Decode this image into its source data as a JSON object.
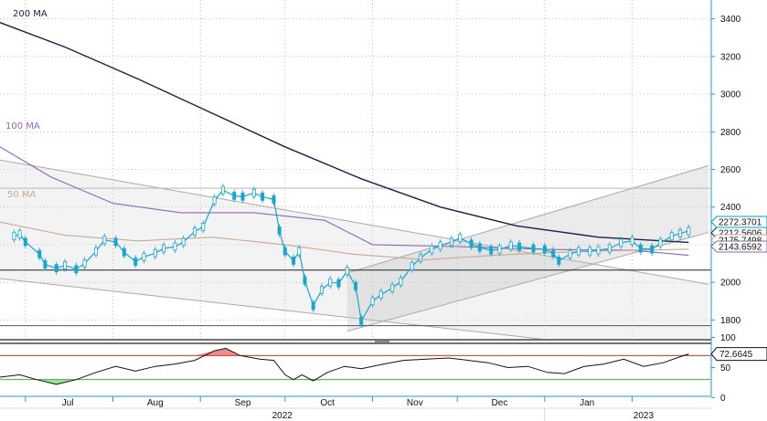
{
  "chart_data": [
    {
      "type": "candlestick",
      "title": "",
      "xlabel": "",
      "ylabel": "",
      "ylim": [
        1700,
        3500
      ],
      "y_ticks": [
        1800,
        2000,
        2200,
        2400,
        2600,
        2800,
        3000,
        3200,
        3400
      ],
      "x_ticks": [
        "Jul",
        "Aug",
        "Sep",
        "Oct",
        "Nov",
        "Dec",
        "Jan"
      ],
      "year_labels": [
        "2022",
        "2023"
      ],
      "grid": true,
      "price_series": [
        [
          "2022-06-27",
          2245
        ],
        [
          "2022-06-29",
          2255
        ],
        [
          "2022-07-01",
          2215
        ],
        [
          "2022-07-06",
          2150
        ],
        [
          "2022-07-08",
          2095
        ],
        [
          "2022-07-12",
          2075
        ],
        [
          "2022-07-15",
          2090
        ],
        [
          "2022-07-19",
          2070
        ],
        [
          "2022-07-22",
          2100
        ],
        [
          "2022-07-26",
          2165
        ],
        [
          "2022-07-29",
          2225
        ],
        [
          "2022-08-02",
          2215
        ],
        [
          "2022-08-05",
          2160
        ],
        [
          "2022-08-09",
          2110
        ],
        [
          "2022-08-12",
          2135
        ],
        [
          "2022-08-16",
          2155
        ],
        [
          "2022-08-19",
          2180
        ],
        [
          "2022-08-23",
          2190
        ],
        [
          "2022-08-26",
          2215
        ],
        [
          "2022-08-30",
          2270
        ],
        [
          "2022-09-02",
          2295
        ],
        [
          "2022-09-06",
          2435
        ],
        [
          "2022-09-09",
          2490
        ],
        [
          "2022-09-13",
          2460
        ],
        [
          "2022-09-16",
          2455
        ],
        [
          "2022-09-20",
          2475
        ],
        [
          "2022-09-23",
          2455
        ],
        [
          "2022-09-27",
          2440
        ],
        [
          "2022-09-29",
          2275
        ],
        [
          "2022-10-01",
          2165
        ],
        [
          "2022-10-04",
          2115
        ],
        [
          "2022-10-06",
          2165
        ],
        [
          "2022-10-08",
          2010
        ],
        [
          "2022-10-11",
          1875
        ],
        [
          "2022-10-14",
          1960
        ],
        [
          "2022-10-17",
          2000
        ],
        [
          "2022-10-20",
          1995
        ],
        [
          "2022-10-23",
          2060
        ],
        [
          "2022-10-26",
          1980
        ],
        [
          "2022-10-28",
          1795
        ],
        [
          "2022-11-01",
          1900
        ],
        [
          "2022-11-04",
          1935
        ],
        [
          "2022-11-08",
          1970
        ],
        [
          "2022-11-11",
          2005
        ],
        [
          "2022-11-15",
          2085
        ],
        [
          "2022-11-18",
          2130
        ],
        [
          "2022-11-22",
          2175
        ],
        [
          "2022-11-25",
          2195
        ],
        [
          "2022-11-29",
          2215
        ],
        [
          "2022-12-02",
          2235
        ],
        [
          "2022-12-06",
          2205
        ],
        [
          "2022-12-09",
          2185
        ],
        [
          "2022-12-13",
          2170
        ],
        [
          "2022-12-16",
          2175
        ],
        [
          "2022-12-20",
          2195
        ],
        [
          "2022-12-23",
          2190
        ],
        [
          "2022-12-28",
          2180
        ],
        [
          "2023-01-01",
          2175
        ],
        [
          "2023-01-04",
          2155
        ],
        [
          "2023-01-06",
          2115
        ],
        [
          "2023-01-10",
          2150
        ],
        [
          "2023-01-13",
          2165
        ],
        [
          "2023-01-17",
          2165
        ],
        [
          "2023-01-20",
          2170
        ],
        [
          "2023-01-24",
          2180
        ],
        [
          "2023-01-28",
          2210
        ],
        [
          "2023-02-01",
          2220
        ],
        [
          "2023-02-04",
          2180
        ],
        [
          "2023-02-08",
          2175
        ],
        [
          "2023-02-11",
          2210
        ],
        [
          "2023-02-15",
          2245
        ],
        [
          "2023-02-18",
          2260
        ],
        [
          "2023-02-21",
          2272.37
        ]
      ],
      "moving_averages": [
        {
          "name": "200 MA",
          "color": "#1c1f4a",
          "end_value": 2212.5606,
          "points": [
            [
              "2022-06-22",
              3380
            ],
            [
              "2022-07-15",
              3250
            ],
            [
              "2022-08-10",
              3080
            ],
            [
              "2022-09-05",
              2900
            ],
            [
              "2022-10-01",
              2720
            ],
            [
              "2022-10-28",
              2550
            ],
            [
              "2022-11-25",
              2400
            ],
            [
              "2022-12-22",
              2300
            ],
            [
              "2023-01-20",
              2240
            ],
            [
              "2023-02-21",
              2212.56
            ]
          ]
        },
        {
          "name": "100 MA",
          "color": "#8a68b6",
          "end_value": 2143.6592,
          "points": [
            [
              "2022-06-22",
              2720
            ],
            [
              "2022-07-10",
              2560
            ],
            [
              "2022-08-01",
              2420
            ],
            [
              "2022-08-25",
              2370
            ],
            [
              "2022-09-20",
              2370
            ],
            [
              "2022-10-15",
              2330
            ],
            [
              "2022-11-01",
              2200
            ],
            [
              "2022-12-01",
              2190
            ],
            [
              "2023-01-01",
              2175
            ],
            [
              "2023-02-01",
              2170
            ],
            [
              "2023-02-21",
              2143.66
            ]
          ]
        },
        {
          "name": "50 MA",
          "color": "#c7a890",
          "end_value": 2175.7498,
          "points": [
            [
              "2022-06-22",
              2320
            ],
            [
              "2022-07-15",
              2250
            ],
            [
              "2022-08-10",
              2220
            ],
            [
              "2022-09-05",
              2240
            ],
            [
              "2022-10-01",
              2200
            ],
            [
              "2022-10-25",
              2150
            ],
            [
              "2022-11-20",
              2120
            ],
            [
              "2022-12-15",
              2145
            ],
            [
              "2023-01-15",
              2165
            ],
            [
              "2023-02-21",
              2175.75
            ]
          ]
        }
      ],
      "horizontal_lines": [
        2500,
        2065,
        1770
      ],
      "last_value_tags": [
        {
          "value": 2272.3701,
          "label": "2272.3701",
          "color": "#00a0c8"
        },
        {
          "value": 2212.5606,
          "label": "2212.5606",
          "color": "#1c1f4a"
        },
        {
          "value": 2175.7498,
          "label": "2175.7498",
          "color": "#c7a890"
        },
        {
          "value": 2143.6592,
          "label": "2143.6592",
          "color": "#8a68b6"
        }
      ],
      "channels": [
        {
          "name": "descending",
          "upper": [
            [
              "2022-06-22",
              2650
            ],
            [
              "2023-02-28",
              1990
            ]
          ],
          "lower": [
            [
              "2022-06-22",
              2020
            ],
            [
              "2023-02-28",
              1600
            ]
          ]
        },
        {
          "name": "ascending",
          "upper": [
            [
              "2022-10-23",
              2050
            ],
            [
              "2023-02-28",
              2620
            ]
          ],
          "lower": [
            [
              "2022-10-23",
              1740
            ],
            [
              "2023-02-28",
              2265
            ]
          ]
        }
      ]
    },
    {
      "type": "line",
      "title": "",
      "xlabel": "",
      "ylabel": "",
      "ylim": [
        -10,
        110
      ],
      "y_ticks": [
        0,
        50,
        100
      ],
      "overbought": 70,
      "oversold": 30,
      "last_value": "72.6645",
      "series": [
        {
          "points": [
            [
              "2022-06-22",
              34
            ],
            [
              "2022-06-29",
              38
            ],
            [
              "2022-07-05",
              30
            ],
            [
              "2022-07-12",
              22
            ],
            [
              "2022-07-19",
              30
            ],
            [
              "2022-07-26",
              42
            ],
            [
              "2022-08-02",
              52
            ],
            [
              "2022-08-09",
              44
            ],
            [
              "2022-08-16",
              52
            ],
            [
              "2022-08-23",
              56
            ],
            [
              "2022-08-30",
              62
            ],
            [
              "2022-09-06",
              78
            ],
            [
              "2022-09-10",
              82
            ],
            [
              "2022-09-15",
              70
            ],
            [
              "2022-09-22",
              64
            ],
            [
              "2022-09-27",
              62
            ],
            [
              "2022-10-01",
              38
            ],
            [
              "2022-10-04",
              30
            ],
            [
              "2022-10-07",
              38
            ],
            [
              "2022-10-11",
              28
            ],
            [
              "2022-10-16",
              42
            ],
            [
              "2022-10-22",
              52
            ],
            [
              "2022-10-28",
              48
            ],
            [
              "2022-11-05",
              56
            ],
            [
              "2022-11-12",
              62
            ],
            [
              "2022-11-20",
              64
            ],
            [
              "2022-11-28",
              66
            ],
            [
              "2022-12-05",
              62
            ],
            [
              "2022-12-12",
              58
            ],
            [
              "2022-12-19",
              50
            ],
            [
              "2022-12-26",
              52
            ],
            [
              "2023-01-02",
              42
            ],
            [
              "2023-01-08",
              40
            ],
            [
              "2023-01-15",
              52
            ],
            [
              "2023-01-22",
              56
            ],
            [
              "2023-01-29",
              64
            ],
            [
              "2023-02-05",
              52
            ],
            [
              "2023-02-12",
              58
            ],
            [
              "2023-02-18",
              68
            ],
            [
              "2023-02-21",
              72.66
            ]
          ]
        }
      ]
    }
  ]
}
